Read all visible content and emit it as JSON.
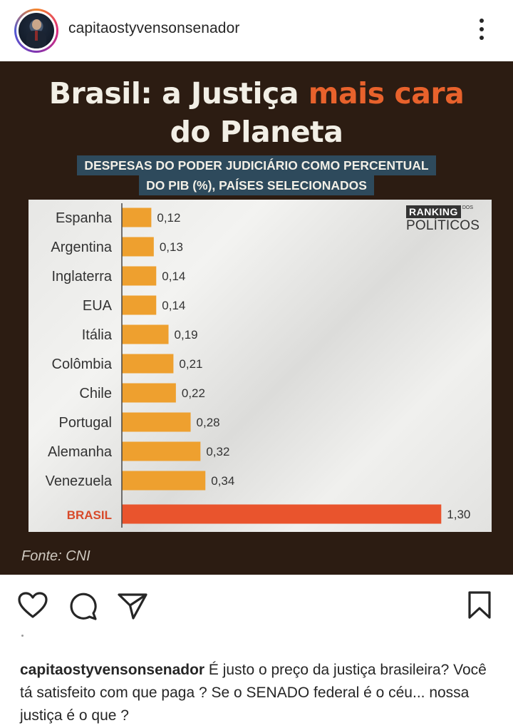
{
  "post": {
    "username": "capitaostyvensonsenador",
    "caption_username": "capitaostyvensonsenador",
    "caption_text": " É justo o preço da justiça brasileira? Você tá satisfeito com que paga ? Se o SENADO federal é o céu... nossa justiça é o que ?"
  },
  "infographic": {
    "title_part1": "Brasil: a Justiça ",
    "title_accent": "mais cara",
    "title_part2": "do Planeta",
    "subtitle_line1": "DESPESAS DO PODER JUDICIÁRIO COMO PERCENTUAL",
    "subtitle_line2": "DO PIB (%), PAÍSES SELECIONADOS",
    "logo_ranking": "RANKING",
    "logo_dos": "DOS",
    "logo_politicos": "POLÍTICOS",
    "source": "Fonte: CNI"
  },
  "colors": {
    "bar": "#eea02f",
    "bar_highlight": "#e9542d",
    "highlight_label": "#d84a2a",
    "accent": "#e8622c",
    "background": "#2c1c12"
  },
  "icons": [
    "heart-icon",
    "comment-icon",
    "share-icon",
    "bookmark-icon",
    "more-options-icon"
  ],
  "chart_data": {
    "type": "bar",
    "orientation": "horizontal",
    "title": "Brasil: a Justiça mais cara do Planeta",
    "subtitle": "DESPESAS DO PODER JUDICIÁRIO COMO PERCENTUAL DO PIB (%), PAÍSES SELECIONADOS",
    "categories": [
      "Espanha",
      "Argentina",
      "Inglaterra",
      "EUA",
      "Itália",
      "Colômbia",
      "Chile",
      "Portugal",
      "Alemanha",
      "Venezuela",
      "BRASIL"
    ],
    "values": [
      0.12,
      0.13,
      0.14,
      0.14,
      0.19,
      0.21,
      0.22,
      0.28,
      0.32,
      0.34,
      1.3
    ],
    "value_labels": [
      "0,12",
      "0,13",
      "0,14",
      "0,14",
      "0,19",
      "0,21",
      "0,22",
      "0,28",
      "0,32",
      "0,34",
      "1,30"
    ],
    "highlight": "BRASIL",
    "xlim": [
      0,
      1.36
    ],
    "grid": false,
    "legend": "none"
  }
}
